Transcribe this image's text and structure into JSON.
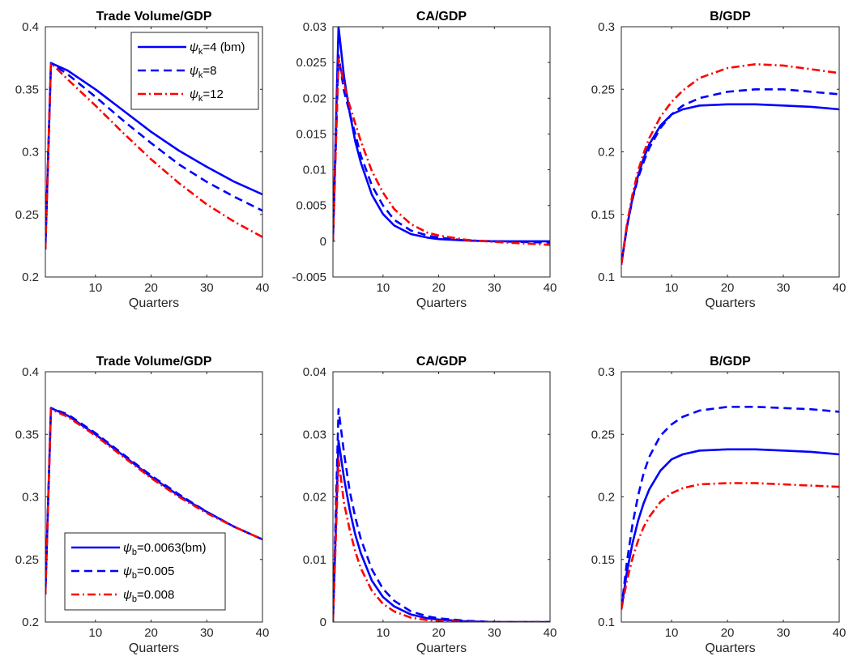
{
  "colors": {
    "blue": "#0000ff",
    "red": "#ff0000",
    "axis": "#262626",
    "background": "#ffffff"
  },
  "legend_top": [
    {
      "sym": "ψ",
      "sub": "k",
      "rest": "=4 (bm)",
      "style": "solid",
      "color": "#0000ff"
    },
    {
      "sym": "ψ",
      "sub": "k",
      "rest": "=8",
      "style": "dashed",
      "color": "#0000ff"
    },
    {
      "sym": "ψ",
      "sub": "k",
      "rest": "=12",
      "style": "dashdot",
      "color": "#ff0000"
    }
  ],
  "legend_bottom": [
    {
      "sym": "ψ",
      "sub": "b",
      "rest": "=0.0063(bm)",
      "style": "solid",
      "color": "#0000ff"
    },
    {
      "sym": "ψ",
      "sub": "b",
      "rest": "=0.005",
      "style": "dashed",
      "color": "#0000ff"
    },
    {
      "sym": "ψ",
      "sub": "b",
      "rest": "=0.008",
      "style": "dashdot",
      "color": "#ff0000"
    }
  ],
  "chart_data": [
    {
      "type": "line",
      "title": "Trade Volume/GDP",
      "xlabel": "Quarters",
      "xlim": [
        1,
        40
      ],
      "ylim": [
        0.2,
        0.4
      ],
      "xticks": [
        10,
        20,
        30,
        40
      ],
      "xtick_labels": [
        "10",
        "20",
        "30",
        "40"
      ],
      "yticks": [
        0.2,
        0.25,
        0.3,
        0.35,
        0.4
      ],
      "ytick_labels": [
        "0.2",
        "0.25",
        "0.3",
        "0.35",
        "0.4"
      ],
      "legend": "top-right",
      "grid": false,
      "x": [
        1,
        2,
        5,
        10,
        15,
        20,
        25,
        30,
        35,
        40
      ],
      "series": [
        {
          "legend": "ψk=4 (bm)",
          "style": "solid",
          "color": "#0000ff",
          "values": [
            0.222,
            0.371,
            0.365,
            0.35,
            0.333,
            0.316,
            0.301,
            0.288,
            0.276,
            0.266
          ]
        },
        {
          "legend": "ψk=8",
          "style": "dashed",
          "color": "#0000ff",
          "values": [
            0.222,
            0.371,
            0.362,
            0.344,
            0.325,
            0.307,
            0.29,
            0.276,
            0.264,
            0.253
          ]
        },
        {
          "legend": "ψk=12",
          "style": "dashdot",
          "color": "#ff0000",
          "values": [
            0.222,
            0.371,
            0.358,
            0.337,
            0.315,
            0.294,
            0.275,
            0.258,
            0.244,
            0.232
          ]
        }
      ]
    },
    {
      "type": "line",
      "title": "CA/GDP",
      "xlabel": "Quarters",
      "xlim": [
        1,
        40
      ],
      "ylim": [
        -0.005,
        0.03
      ],
      "xticks": [
        10,
        20,
        30,
        40
      ],
      "xtick_labels": [
        "10",
        "20",
        "30",
        "40"
      ],
      "yticks": [
        -0.005,
        0,
        0.005,
        0.01,
        0.015,
        0.02,
        0.025,
        0.03
      ],
      "ytick_labels": [
        "-0.005",
        "0",
        "0.005",
        "0.01",
        "0.015",
        "0.02",
        "0.025",
        "0.03"
      ],
      "grid": false,
      "x": [
        1,
        2,
        3,
        4,
        5,
        6,
        8,
        10,
        12,
        15,
        18,
        20,
        25,
        30,
        35,
        40
      ],
      "series": [
        {
          "style": "solid",
          "color": "#0000ff",
          "values": [
            0,
            0.03,
            0.023,
            0.018,
            0.014,
            0.011,
            0.0065,
            0.0038,
            0.0022,
            0.001,
            0.0005,
            0.0003,
            0.0001,
            0,
            0,
            0
          ]
        },
        {
          "style": "dashed",
          "color": "#0000ff",
          "values": [
            0,
            0.026,
            0.021,
            0.018,
            0.015,
            0.012,
            0.0078,
            0.005,
            0.003,
            0.0015,
            0.0008,
            0.0005,
            0.0001,
            0,
            -0.0001,
            -0.0002
          ]
        },
        {
          "style": "dashdot",
          "color": "#ff0000",
          "values": [
            0,
            0.0255,
            0.022,
            0.019,
            0.0165,
            0.014,
            0.0098,
            0.0068,
            0.0045,
            0.0024,
            0.0012,
            0.0008,
            0.0002,
            -0.0001,
            -0.0003,
            -0.0005
          ]
        }
      ]
    },
    {
      "type": "line",
      "title": "B/GDP",
      "xlabel": "Quarters",
      "xlim": [
        1,
        40
      ],
      "ylim": [
        0.1,
        0.3
      ],
      "xticks": [
        10,
        20,
        30,
        40
      ],
      "xtick_labels": [
        "10",
        "20",
        "30",
        "40"
      ],
      "yticks": [
        0.1,
        0.15,
        0.2,
        0.25,
        0.3
      ],
      "ytick_labels": [
        "0.1",
        "0.15",
        "0.2",
        "0.25",
        "0.3"
      ],
      "grid": false,
      "x": [
        1,
        2,
        3,
        4,
        5,
        6,
        8,
        10,
        12,
        15,
        20,
        25,
        30,
        35,
        40
      ],
      "series": [
        {
          "style": "solid",
          "color": "#0000ff",
          "values": [
            0.11,
            0.14,
            0.163,
            0.181,
            0.195,
            0.206,
            0.221,
            0.23,
            0.234,
            0.237,
            0.238,
            0.238,
            0.237,
            0.236,
            0.234
          ]
        },
        {
          "style": "dashed",
          "color": "#0000ff",
          "values": [
            0.11,
            0.14,
            0.162,
            0.179,
            0.192,
            0.203,
            0.219,
            0.23,
            0.237,
            0.243,
            0.248,
            0.25,
            0.25,
            0.248,
            0.246
          ]
        },
        {
          "style": "dashdot",
          "color": "#ff0000",
          "values": [
            0.11,
            0.142,
            0.166,
            0.185,
            0.199,
            0.211,
            0.228,
            0.24,
            0.249,
            0.259,
            0.267,
            0.27,
            0.269,
            0.266,
            0.263
          ]
        }
      ]
    },
    {
      "type": "line",
      "title": "Trade Volume/GDP",
      "xlabel": "Quarters",
      "xlim": [
        1,
        40
      ],
      "ylim": [
        0.2,
        0.4
      ],
      "xticks": [
        10,
        20,
        30,
        40
      ],
      "xtick_labels": [
        "10",
        "20",
        "30",
        "40"
      ],
      "yticks": [
        0.2,
        0.25,
        0.3,
        0.35,
        0.4
      ],
      "ytick_labels": [
        "0.2",
        "0.25",
        "0.3",
        "0.35",
        "0.4"
      ],
      "legend": "bottom-left",
      "grid": false,
      "x": [
        1,
        2,
        5,
        10,
        15,
        20,
        25,
        30,
        35,
        40
      ],
      "series": [
        {
          "legend": "ψb=0.0063(bm)",
          "style": "solid",
          "color": "#0000ff",
          "values": [
            0.222,
            0.371,
            0.365,
            0.35,
            0.333,
            0.316,
            0.301,
            0.288,
            0.276,
            0.266
          ]
        },
        {
          "legend": "ψb=0.005",
          "style": "dashed",
          "color": "#0000ff",
          "values": [
            0.222,
            0.371,
            0.366,
            0.351,
            0.334,
            0.317,
            0.302,
            0.288,
            0.276,
            0.266
          ]
        },
        {
          "legend": "ψb=0.008",
          "style": "dashdot",
          "color": "#ff0000",
          "values": [
            0.222,
            0.37,
            0.364,
            0.349,
            0.332,
            0.315,
            0.3,
            0.287,
            0.276,
            0.266
          ]
        }
      ]
    },
    {
      "type": "line",
      "title": "CA/GDP",
      "xlabel": "Quarters",
      "xlim": [
        1,
        40
      ],
      "ylim": [
        0,
        0.04
      ],
      "xticks": [
        10,
        20,
        30,
        40
      ],
      "xtick_labels": [
        "10",
        "20",
        "30",
        "40"
      ],
      "yticks": [
        0,
        0.01,
        0.02,
        0.03,
        0.04
      ],
      "ytick_labels": [
        "0",
        "0.01",
        "0.02",
        "0.03",
        "0.04"
      ],
      "grid": false,
      "x": [
        1,
        2,
        3,
        4,
        5,
        6,
        8,
        10,
        12,
        15,
        18,
        20,
        25,
        30,
        35,
        40
      ],
      "series": [
        {
          "style": "solid",
          "color": "#0000ff",
          "values": [
            0,
            0.029,
            0.023,
            0.018,
            0.014,
            0.011,
            0.0066,
            0.004,
            0.0025,
            0.0012,
            0.0006,
            0.0004,
            0.0001,
            0,
            0,
            0
          ]
        },
        {
          "style": "dashed",
          "color": "#0000ff",
          "values": [
            0,
            0.034,
            0.027,
            0.021,
            0.0168,
            0.0133,
            0.0084,
            0.0053,
            0.0034,
            0.0017,
            0.0009,
            0.0006,
            0.0002,
            0,
            0,
            0
          ]
        },
        {
          "style": "dashdot",
          "color": "#ff0000",
          "values": [
            0,
            0.026,
            0.019,
            0.0148,
            0.0113,
            0.0086,
            0.005,
            0.0029,
            0.0017,
            0.0007,
            0.0003,
            0.0002,
            0,
            0,
            0,
            0
          ]
        }
      ]
    },
    {
      "type": "line",
      "title": "B/GDP",
      "xlabel": "Quarters",
      "xlim": [
        1,
        40
      ],
      "ylim": [
        0.1,
        0.3
      ],
      "xticks": [
        10,
        20,
        30,
        40
      ],
      "xtick_labels": [
        "10",
        "20",
        "30",
        "40"
      ],
      "yticks": [
        0.1,
        0.15,
        0.2,
        0.25,
        0.3
      ],
      "ytick_labels": [
        "0.1",
        "0.15",
        "0.2",
        "0.25",
        "0.3"
      ],
      "grid": false,
      "x": [
        1,
        2,
        3,
        4,
        5,
        6,
        8,
        10,
        12,
        15,
        20,
        25,
        30,
        35,
        40
      ],
      "series": [
        {
          "style": "solid",
          "color": "#0000ff",
          "values": [
            0.11,
            0.14,
            0.163,
            0.181,
            0.195,
            0.206,
            0.221,
            0.23,
            0.234,
            0.237,
            0.238,
            0.238,
            0.237,
            0.236,
            0.234
          ]
        },
        {
          "style": "dashed",
          "color": "#0000ff",
          "values": [
            0.11,
            0.148,
            0.178,
            0.201,
            0.219,
            0.232,
            0.249,
            0.258,
            0.264,
            0.269,
            0.272,
            0.272,
            0.271,
            0.27,
            0.268
          ]
        },
        {
          "style": "dashdot",
          "color": "#ff0000",
          "values": [
            0.11,
            0.133,
            0.151,
            0.165,
            0.176,
            0.184,
            0.196,
            0.203,
            0.207,
            0.21,
            0.211,
            0.211,
            0.21,
            0.209,
            0.208
          ]
        }
      ]
    }
  ]
}
